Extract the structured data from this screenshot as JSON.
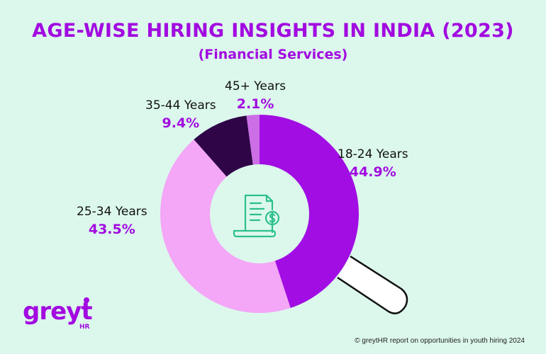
{
  "header": {
    "title": "AGE-WISE HIRING INSIGHTS IN INDIA (2023)",
    "subtitle": "(Financial Services)"
  },
  "chart_data": {
    "type": "pie",
    "style": "donut",
    "categories": [
      "18-24 Years",
      "25-34 Years",
      "35-44 Years",
      "45+ Years"
    ],
    "values": [
      44.9,
      43.5,
      9.4,
      2.1
    ],
    "value_labels": [
      "44.9%",
      "43.5%",
      "9.4%",
      "2.1%"
    ],
    "colors": [
      "#a10de3",
      "#f4a6f7",
      "#2f0548",
      "#cc6fe6"
    ],
    "center_icon": "bill-document-icon"
  },
  "branding": {
    "logo_text": "greyt",
    "logo_sub": "HR"
  },
  "footer": {
    "source": "© greytHR report on opportunities in youth hiring 2024"
  },
  "colors": {
    "background": "#dcf8ec",
    "accent": "#a20ae0",
    "icon": "#2cc08a"
  }
}
